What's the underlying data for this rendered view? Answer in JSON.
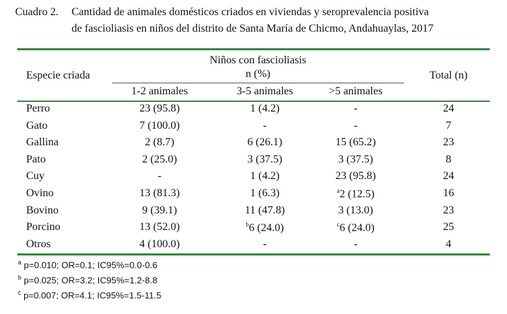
{
  "caption": {
    "label": "Cuadro 2.",
    "lines": [
      "Cantidad de animales domésticos criados en viviendas y seroprevalencia positiva",
      "de fascioliasis en niños del distrito de Santa María de Chicmo, Andahuaylas, 2017"
    ]
  },
  "table": {
    "header": {
      "row_label": "Especie criada",
      "group": "Niños con fascioliasis",
      "group_unit": "n (%)",
      "columns": [
        "1-2 animales",
        "3-5 animales",
        ">5 animales"
      ],
      "total": "Total (n)"
    },
    "rows": [
      [
        "Perro",
        "23 (95.8)",
        "1 (4.2)",
        "-",
        "24"
      ],
      [
        "Gato",
        "7 (100.0)",
        "-",
        "-",
        "7"
      ],
      [
        "Gallina",
        "2 (8.7)",
        "6 (26.1)",
        "15 (65.2)",
        "23"
      ],
      [
        "Pato",
        "2 (25.0)",
        "3 (37.5)",
        "3 (37.5)",
        "8"
      ],
      [
        "Cuy",
        "-",
        "1 (4.2)",
        "23 (95.8)",
        "24"
      ],
      [
        "Ovino",
        "13 (81.3)",
        "1 (6.3)",
        {
          "sup": "a",
          "text": "2 (12.5)"
        },
        "16"
      ],
      [
        "Bovino",
        "9 (39.1)",
        "11 (47.8)",
        "3 (13.0)",
        "23"
      ],
      [
        "Porcino",
        "13 (52.0)",
        {
          "sup": "b",
          "text": "6 (24.0)"
        },
        {
          "sup": "c",
          "text": "6 (24.0)"
        },
        "25"
      ],
      [
        "Otros",
        "4 (100.0)",
        "-",
        "-",
        "4"
      ]
    ]
  },
  "footnotes": [
    {
      "sup": "a",
      "text": "p=0.010; OR=0.1; IC95%=0.0-0.6"
    },
    {
      "sup": "b",
      "text": "p=0.025; OR=3.2; IC95%=1.2-8.8"
    },
    {
      "sup": "c",
      "text": "p=0.007; OR=4.1; IC95%=1.5-11.5"
    }
  ]
}
